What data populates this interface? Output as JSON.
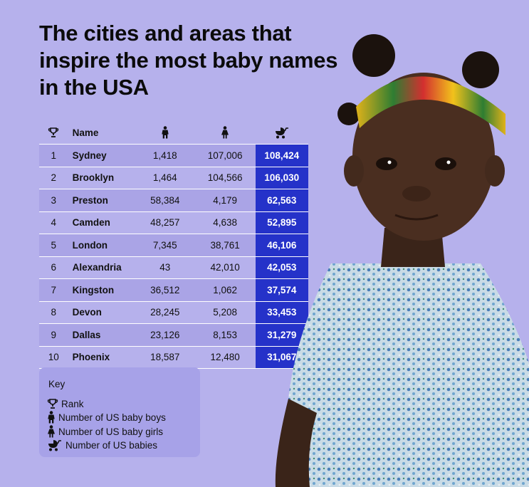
{
  "title": "The cities and areas that inspire the most baby names in the USA",
  "table": {
    "headers": {
      "rank_icon": "trophy-icon",
      "name": "Name",
      "boys_icon": "boy-icon",
      "girls_icon": "girl-icon",
      "total_icon": "stroller-icon"
    },
    "rows": [
      {
        "rank": "1",
        "name": "Sydney",
        "boys": "1,418",
        "girls": "107,006",
        "total": "108,424"
      },
      {
        "rank": "2",
        "name": "Brooklyn",
        "boys": "1,464",
        "girls": "104,566",
        "total": "106,030"
      },
      {
        "rank": "3",
        "name": "Preston",
        "boys": "58,384",
        "girls": "4,179",
        "total": "62,563"
      },
      {
        "rank": "4",
        "name": "Camden",
        "boys": "48,257",
        "girls": "4,638",
        "total": "52,895"
      },
      {
        "rank": "5",
        "name": "London",
        "boys": "7,345",
        "girls": "38,761",
        "total": "46,106"
      },
      {
        "rank": "6",
        "name": "Alexandria",
        "boys": "43",
        "girls": "42,010",
        "total": "42,053"
      },
      {
        "rank": "7",
        "name": "Kingston",
        "boys": "36,512",
        "girls": "1,062",
        "total": "37,574"
      },
      {
        "rank": "8",
        "name": "Devon",
        "boys": "28,245",
        "girls": "5,208",
        "total": "33,453"
      },
      {
        "rank": "9",
        "name": "Dallas",
        "boys": "23,126",
        "girls": "8,153",
        "total": "31,279"
      },
      {
        "rank": "10",
        "name": "Phoenix",
        "boys": "18,587",
        "girls": "12,480",
        "total": "31,067"
      }
    ]
  },
  "key": {
    "title": "Key",
    "items": [
      {
        "icon": "trophy-icon",
        "label": "Rank"
      },
      {
        "icon": "boy-icon",
        "label": "Number of US baby boys"
      },
      {
        "icon": "girl-icon",
        "label": "Number of US baby girls"
      },
      {
        "icon": "stroller-icon",
        "label": "Number of US babies"
      }
    ]
  },
  "colors": {
    "background": "#b6b1ec",
    "accent": "#2532c9",
    "stripe": "#aaa4e6",
    "key_bg": "#a7a2e8"
  }
}
